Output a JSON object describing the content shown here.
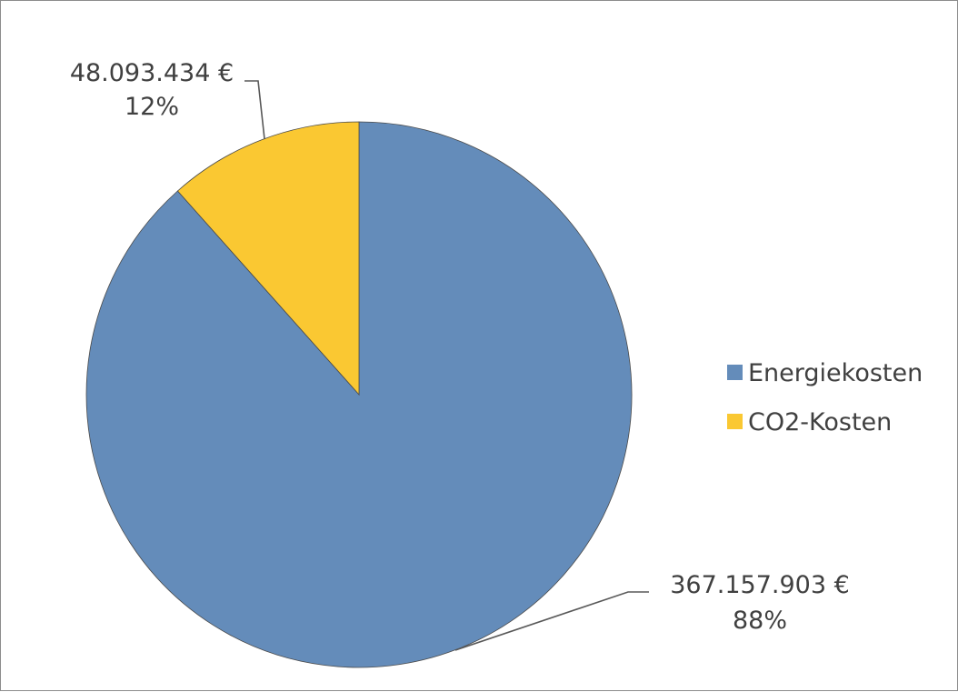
{
  "chart_data": {
    "type": "pie",
    "title": "",
    "categories": [
      "Energiekosten",
      "CO2-Kosten"
    ],
    "values": [
      367157903,
      48093434
    ],
    "colors": [
      "#648cba",
      "#fac832"
    ],
    "slices": [
      {
        "name": "Energiekosten",
        "value": 367157903,
        "value_label": "367.157.903 €",
        "percent_label": "88%",
        "color": "#648cba"
      },
      {
        "name": "CO2-Kosten",
        "value": 48093434,
        "value_label": "48.093.434 €",
        "percent_label": "12%",
        "color": "#fac832"
      }
    ],
    "legend": {
      "position": "right",
      "entries": [
        "Energiekosten",
        "CO2-Kosten"
      ]
    }
  }
}
